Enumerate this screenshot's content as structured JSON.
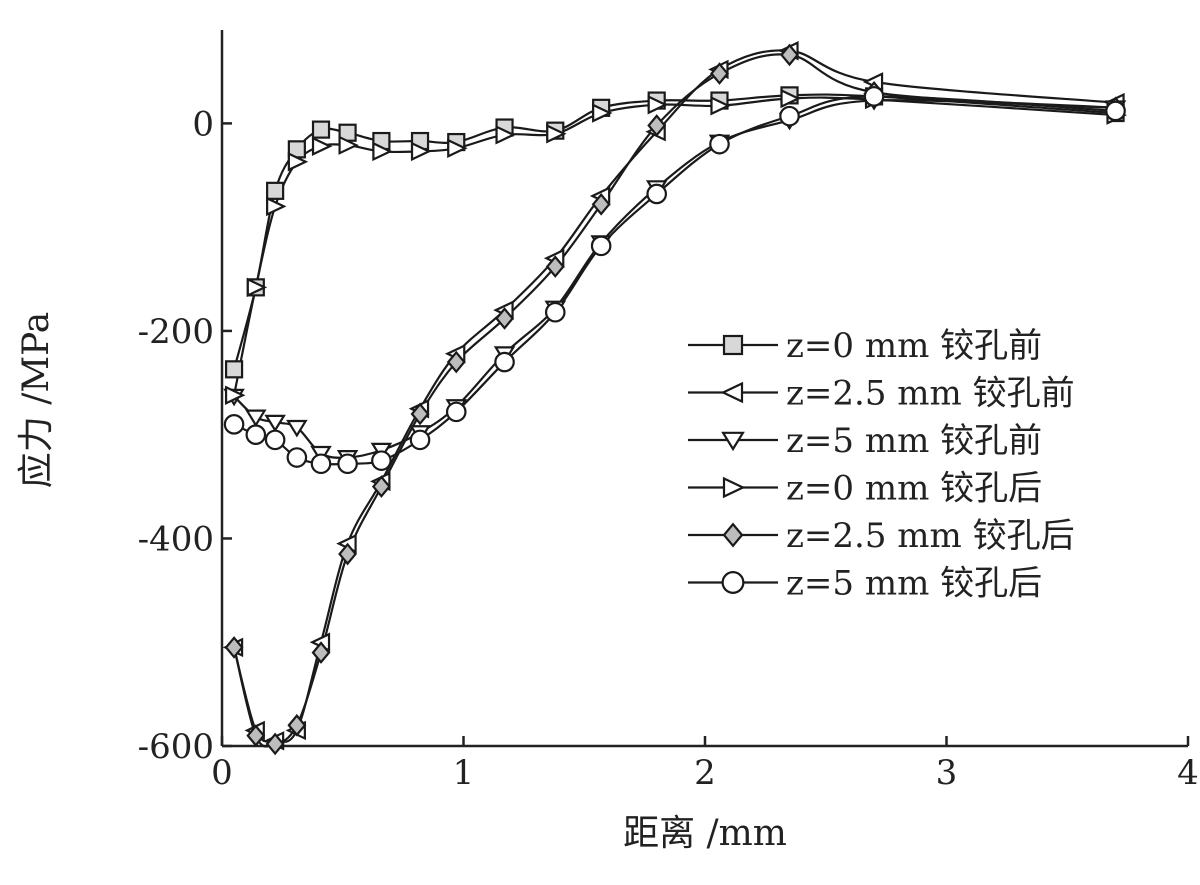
{
  "chart_data": {
    "type": "line",
    "title": "",
    "xlabel": "距离 /mm",
    "ylabel": "应力 /MPa",
    "xlim": [
      0,
      4
    ],
    "ylim": [
      -600,
      90
    ],
    "xticks": [
      0,
      1,
      2,
      3,
      4
    ],
    "yticks": [
      -600,
      -400,
      -200,
      0
    ],
    "grid": false,
    "legend_position": "center-right",
    "series": [
      {
        "name": "z=0 mm 铰孔前",
        "marker": "square",
        "x": [
          0.05,
          0.14,
          0.22,
          0.31,
          0.41,
          0.52,
          0.66,
          0.82,
          0.97,
          1.17,
          1.38,
          1.57,
          1.8,
          2.06,
          2.35,
          2.7,
          3.7
        ],
        "y": [
          -237,
          -158,
          -65,
          -25,
          -6,
          -9,
          -17,
          -17,
          -18,
          -4,
          -7,
          15,
          22,
          22,
          27,
          26,
          10
        ]
      },
      {
        "name": "z=2.5 mm 铰孔前",
        "marker": "triangle-left",
        "x": [
          0.05,
          0.14,
          0.22,
          0.31,
          0.41,
          0.52,
          0.66,
          0.82,
          0.97,
          1.17,
          1.38,
          1.57,
          1.8,
          2.06,
          2.35,
          2.7,
          3.7
        ],
        "y": [
          -505,
          -585,
          -595,
          -585,
          -500,
          -405,
          -345,
          -275,
          -222,
          -180,
          -130,
          -70,
          -8,
          52,
          70,
          40,
          20
        ]
      },
      {
        "name": "z=5 mm 铰孔前",
        "marker": "triangle-down",
        "x": [
          0.05,
          0.14,
          0.22,
          0.31,
          0.41,
          0.52,
          0.66,
          0.82,
          0.97,
          1.17,
          1.38,
          1.57,
          1.8,
          2.06,
          2.35,
          2.7,
          3.7
        ],
        "y": [
          -263,
          -283,
          -288,
          -293,
          -318,
          -322,
          -315,
          -298,
          -273,
          -222,
          -178,
          -115,
          -62,
          -18,
          3,
          22,
          15
        ]
      },
      {
        "name": "z=0 mm 铰孔后",
        "marker": "triangle-right",
        "x": [
          0.05,
          0.14,
          0.22,
          0.31,
          0.41,
          0.52,
          0.66,
          0.82,
          0.97,
          1.17,
          1.38,
          1.57,
          1.8,
          2.06,
          2.35,
          2.7,
          3.7
        ],
        "y": [
          -262,
          -158,
          -80,
          -37,
          -22,
          -21,
          -27,
          -27,
          -24,
          -11,
          -10,
          10,
          18,
          17,
          24,
          23,
          8
        ]
      },
      {
        "name": "z=2.5 mm 铰孔后",
        "marker": "diamond",
        "x": [
          0.05,
          0.14,
          0.22,
          0.31,
          0.41,
          0.52,
          0.66,
          0.82,
          0.97,
          1.17,
          1.38,
          1.57,
          1.8,
          2.06,
          2.35,
          2.7,
          3.7
        ],
        "y": [
          -505,
          -590,
          -598,
          -580,
          -510,
          -415,
          -350,
          -280,
          -230,
          -188,
          -138,
          -78,
          -2,
          48,
          66,
          30,
          15
        ]
      },
      {
        "name": "z=5 mm 铰孔后",
        "marker": "circle",
        "x": [
          0.05,
          0.14,
          0.22,
          0.31,
          0.41,
          0.52,
          0.66,
          0.82,
          0.97,
          1.17,
          1.38,
          1.57,
          1.8,
          2.06,
          2.35,
          2.7,
          3.7
        ],
        "y": [
          -290,
          -300,
          -305,
          -322,
          -328,
          -328,
          -325,
          -305,
          -278,
          -230,
          -182,
          -118,
          -68,
          -20,
          7,
          26,
          12
        ]
      }
    ]
  }
}
